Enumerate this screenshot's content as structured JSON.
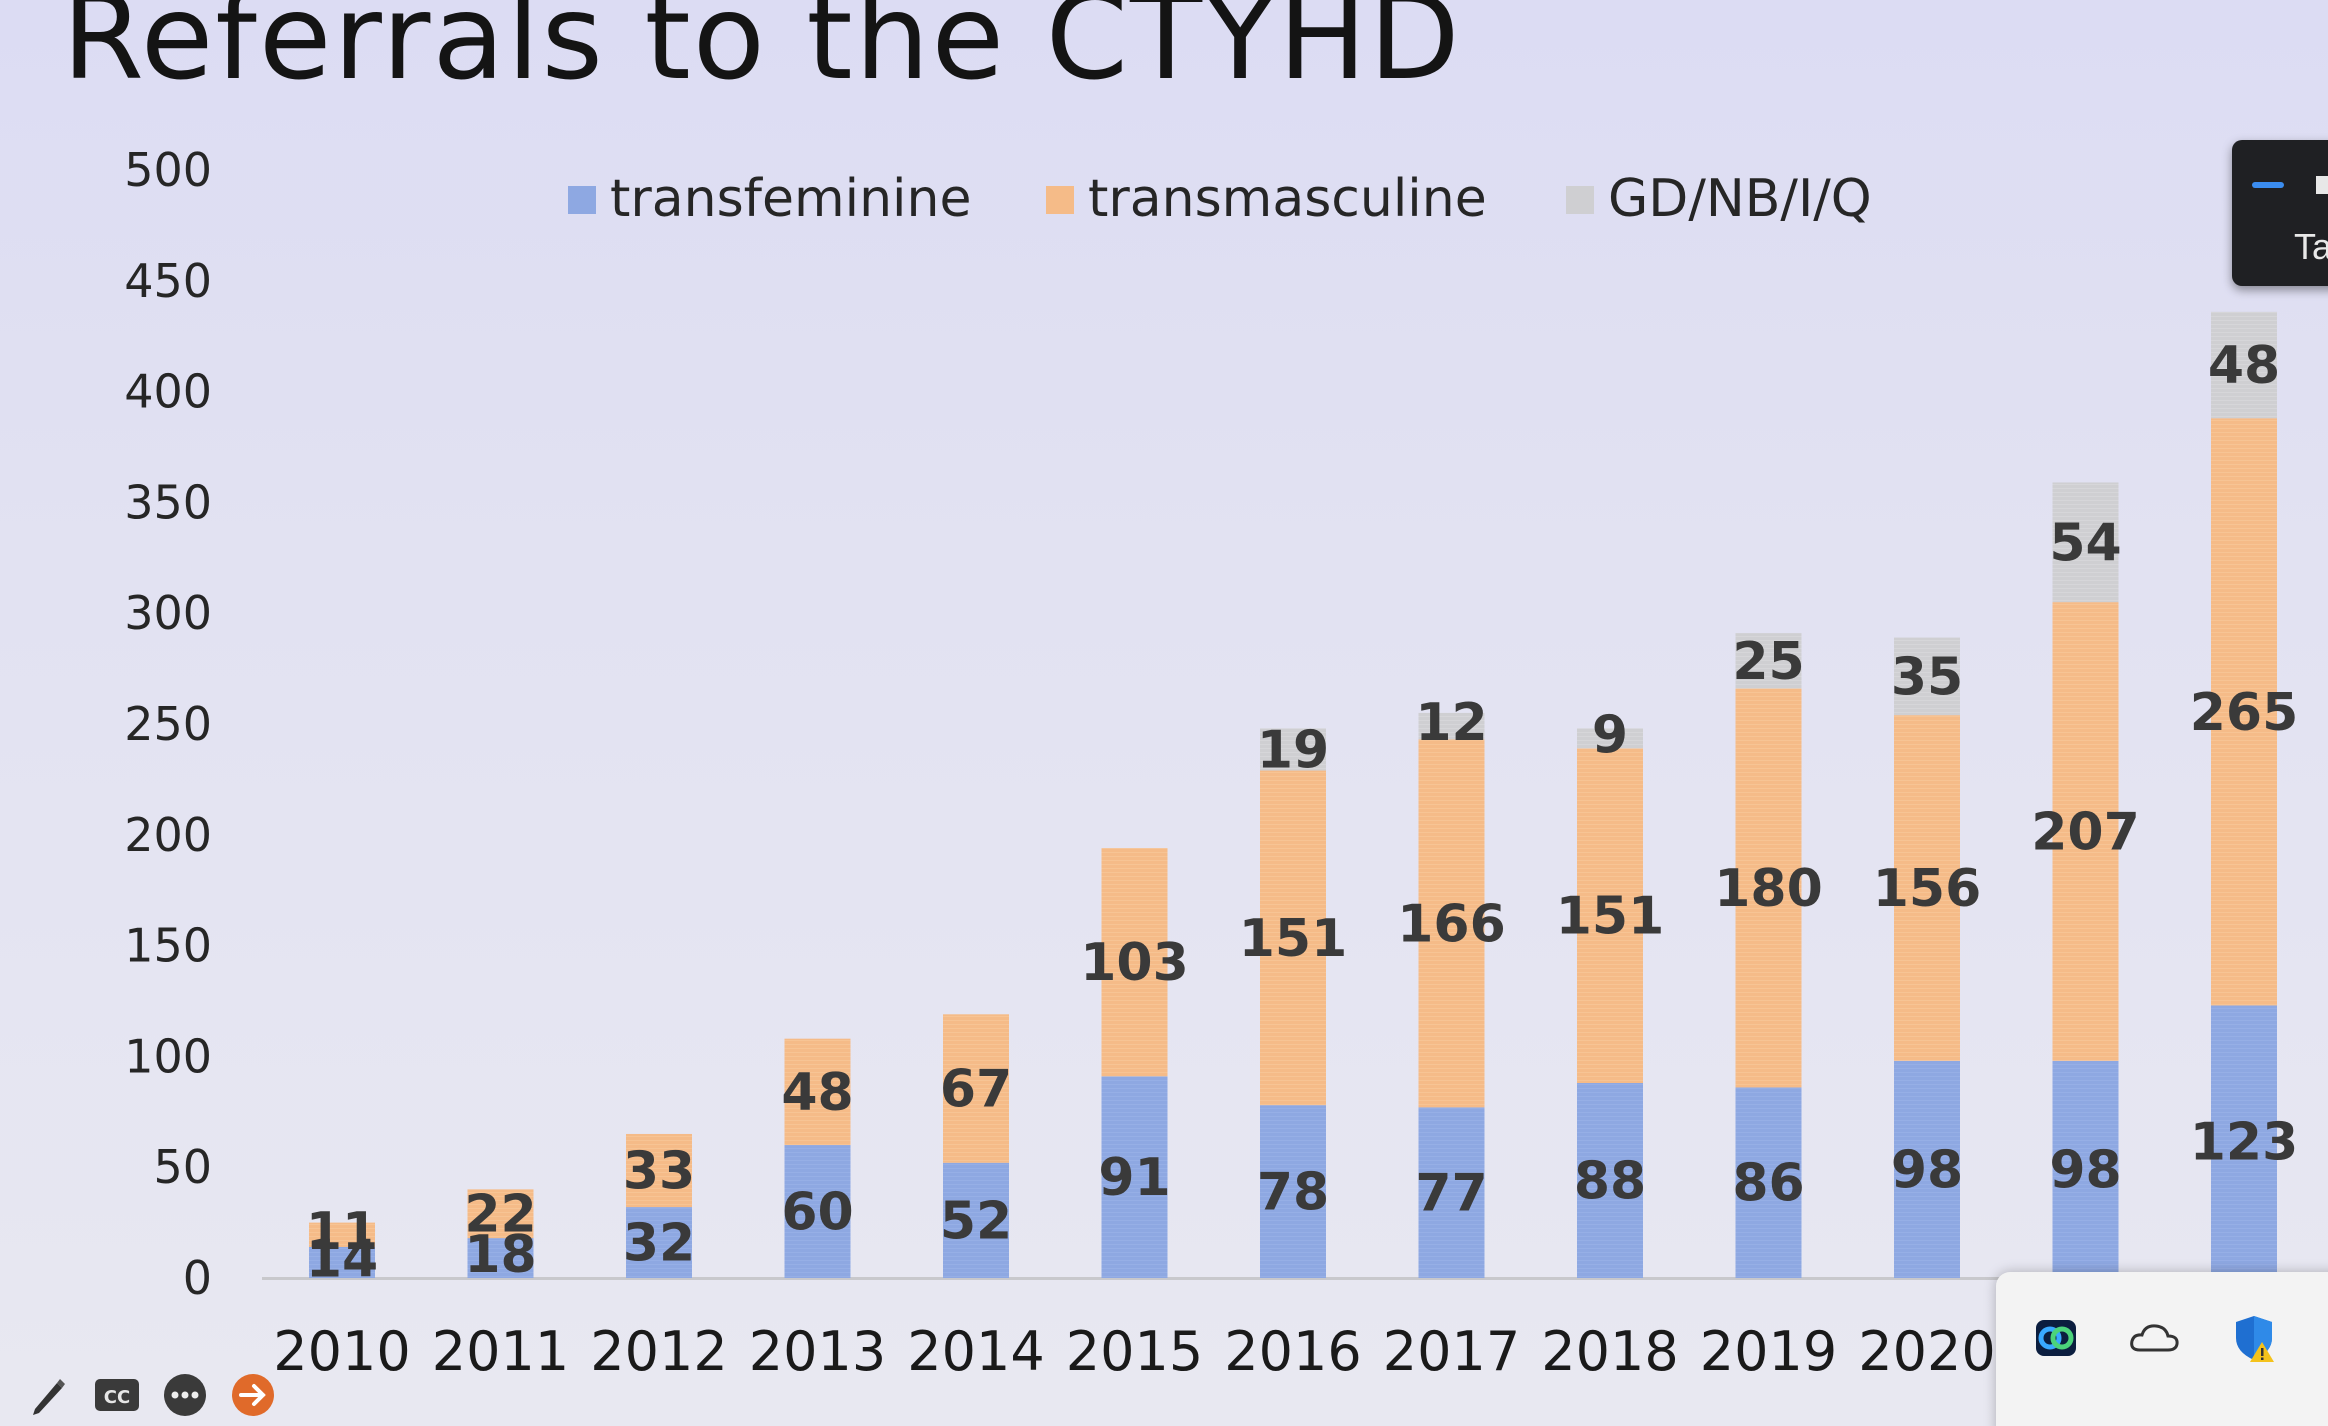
{
  "slide": {
    "title": "Referrals to the CTYHD"
  },
  "colors": {
    "transfeminine": "#8fa9e3",
    "transmasculine": "#f6bd8a",
    "gd": "#d2d2d4",
    "axis": "#c8c8cc"
  },
  "chart_data": {
    "type": "bar",
    "stacked": true,
    "title": "Referrals to the CTYHD",
    "xlabel": "",
    "ylabel": "",
    "ylim": [
      0,
      500
    ],
    "yticks": [
      "0",
      "50",
      "100",
      "150",
      "200",
      "250",
      "300",
      "350",
      "400",
      "450",
      "500"
    ],
    "categories": [
      "2010",
      "2011",
      "2012",
      "2013",
      "2014",
      "2015",
      "2016",
      "2017",
      "2018",
      "2019",
      "2020",
      "",
      ""
    ],
    "legend_position": "top",
    "series": [
      {
        "name": "transfeminine",
        "values": [
          14,
          18,
          32,
          60,
          52,
          91,
          78,
          77,
          88,
          86,
          98,
          98,
          123
        ],
        "labels": [
          "14",
          "18",
          "32",
          "60",
          "52",
          "91",
          "78",
          "77",
          "88",
          "86",
          "98",
          "98",
          "123"
        ]
      },
      {
        "name": "transmasculine",
        "values": [
          11,
          22,
          33,
          48,
          67,
          103,
          151,
          166,
          151,
          180,
          156,
          207,
          265
        ],
        "labels": [
          "11",
          "22",
          "33",
          "48",
          "67",
          "103",
          "151",
          "166",
          "151",
          "180",
          "156",
          "207",
          "265"
        ]
      },
      {
        "name": "GD/NB/I/Q",
        "values": [
          0,
          0,
          0,
          0,
          0,
          0,
          19,
          12,
          9,
          25,
          35,
          54,
          48
        ],
        "labels": [
          "",
          "",
          "",
          "",
          "",
          "",
          "19",
          "12",
          "9",
          "25",
          "35",
          "54",
          "48"
        ]
      }
    ]
  },
  "widget": {
    "label": "Ta"
  },
  "toolbar": {
    "icons": [
      "pen-icon",
      "closed-captions-icon",
      "more-options-icon",
      "next-slide-icon"
    ]
  },
  "tray": {
    "icons": [
      "webex-icon",
      "onedrive-icon",
      "defender-warning-icon"
    ]
  }
}
